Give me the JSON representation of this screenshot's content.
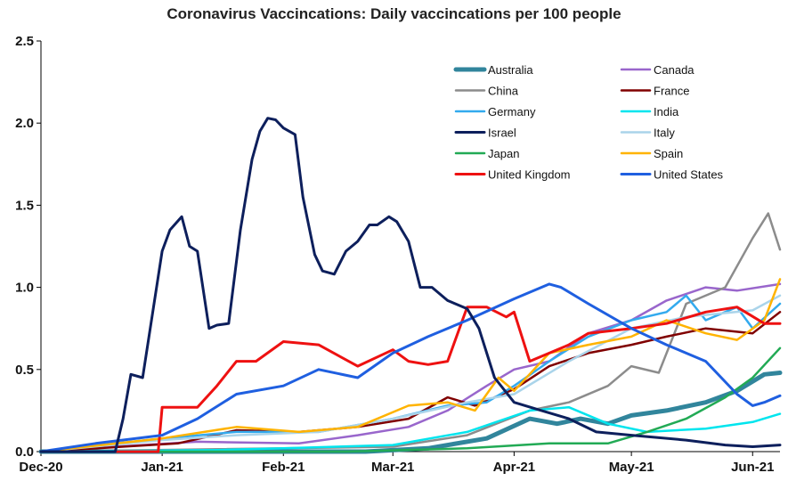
{
  "chart_data": {
    "type": "line",
    "title": "Coronavirus Vaccincations: Daily vaccincations per 100 people",
    "xlabel": "",
    "ylabel": "",
    "ylim": [
      0,
      2.5
    ],
    "y_ticks": [
      "0.0",
      "0.5",
      "1.0",
      "1.5",
      "2.0",
      "2.5"
    ],
    "x_range": [
      "2020-12-01",
      "2021-06-08"
    ],
    "x_ticks": [
      {
        "label": "Dec-20",
        "date": "2020-12-01"
      },
      {
        "label": "Jan-21",
        "date": "2021-01-01"
      },
      {
        "label": "Feb-21",
        "date": "2021-02-01"
      },
      {
        "label": "Mar-21",
        "date": "2021-03-01"
      },
      {
        "label": "Apr-21",
        "date": "2021-04-01"
      },
      {
        "label": "May-21",
        "date": "2021-05-01"
      },
      {
        "label": "Jun-21",
        "date": "2021-06-01"
      }
    ],
    "grid": false,
    "legend_position": "top-right",
    "series": [
      {
        "name": "Australia",
        "color": "#31859c",
        "width": 5,
        "x": [
          "2020-12-01",
          "2021-02-22",
          "2021-03-10",
          "2021-03-25",
          "2021-04-05",
          "2021-04-12",
          "2021-04-18",
          "2021-04-25",
          "2021-05-01",
          "2021-05-10",
          "2021-05-20",
          "2021-05-28",
          "2021-06-04",
          "2021-06-08"
        ],
        "y": [
          0,
          0,
          0.02,
          0.08,
          0.2,
          0.17,
          0.2,
          0.17,
          0.22,
          0.25,
          0.3,
          0.37,
          0.47,
          0.48
        ]
      },
      {
        "name": "Canada",
        "color": "#9966cc",
        "width": 2.5,
        "x": [
          "2020-12-01",
          "2020-12-20",
          "2021-01-10",
          "2021-02-05",
          "2021-02-20",
          "2021-03-05",
          "2021-03-15",
          "2021-03-25",
          "2021-04-01",
          "2021-04-10",
          "2021-04-20",
          "2021-05-01",
          "2021-05-10",
          "2021-05-20",
          "2021-05-28",
          "2021-06-08"
        ],
        "y": [
          0,
          0.03,
          0.06,
          0.05,
          0.1,
          0.15,
          0.25,
          0.4,
          0.5,
          0.55,
          0.72,
          0.8,
          0.92,
          1.0,
          0.98,
          1.02
        ]
      },
      {
        "name": "China",
        "color": "#8c8c8c",
        "width": 2.5,
        "x": [
          "2020-12-01",
          "2021-03-01",
          "2021-03-20",
          "2021-04-05",
          "2021-04-15",
          "2021-04-25",
          "2021-05-01",
          "2021-05-08",
          "2021-05-15",
          "2021-05-25",
          "2021-06-01",
          "2021-06-05",
          "2021-06-08"
        ],
        "y": [
          0,
          0.03,
          0.1,
          0.25,
          0.3,
          0.4,
          0.52,
          0.48,
          0.9,
          1.0,
          1.3,
          1.45,
          1.23
        ]
      },
      {
        "name": "France",
        "color": "#800000",
        "width": 2.5,
        "x": [
          "2020-12-01",
          "2021-01-05",
          "2021-01-20",
          "2021-02-05",
          "2021-02-20",
          "2021-03-05",
          "2021-03-15",
          "2021-03-22",
          "2021-04-01",
          "2021-04-10",
          "2021-04-20",
          "2021-05-01",
          "2021-05-10",
          "2021-05-20",
          "2021-06-01",
          "2021-06-08"
        ],
        "y": [
          0,
          0.05,
          0.13,
          0.12,
          0.15,
          0.2,
          0.33,
          0.28,
          0.38,
          0.52,
          0.6,
          0.65,
          0.7,
          0.75,
          0.72,
          0.85
        ]
      },
      {
        "name": "Germany",
        "color": "#33aaee",
        "width": 2.5,
        "x": [
          "2020-12-01",
          "2021-01-01",
          "2021-01-20",
          "2021-02-10",
          "2021-03-01",
          "2021-03-15",
          "2021-03-25",
          "2021-04-01",
          "2021-04-10",
          "2021-04-20",
          "2021-05-01",
          "2021-05-10",
          "2021-05-15",
          "2021-05-20",
          "2021-05-28",
          "2021-06-01",
          "2021-06-08"
        ],
        "y": [
          0,
          0.08,
          0.12,
          0.12,
          0.2,
          0.28,
          0.3,
          0.4,
          0.55,
          0.7,
          0.8,
          0.85,
          0.95,
          0.8,
          0.88,
          0.75,
          0.9
        ]
      },
      {
        "name": "India",
        "color": "#00e5ee",
        "width": 2.5,
        "x": [
          "2020-12-01",
          "2021-01-15",
          "2021-02-01",
          "2021-03-01",
          "2021-03-20",
          "2021-04-05",
          "2021-04-15",
          "2021-04-25",
          "2021-05-05",
          "2021-05-20",
          "2021-06-01",
          "2021-06-08"
        ],
        "y": [
          0,
          0.01,
          0.02,
          0.04,
          0.12,
          0.25,
          0.27,
          0.17,
          0.12,
          0.14,
          0.18,
          0.23
        ]
      },
      {
        "name": "Israel",
        "color": "#0d1f5c",
        "width": 3,
        "x": [
          "2020-12-01",
          "2020-12-20",
          "2020-12-22",
          "2020-12-24",
          "2020-12-27",
          "2021-01-01",
          "2021-01-03",
          "2021-01-06",
          "2021-01-08",
          "2021-01-10",
          "2021-01-13",
          "2021-01-15",
          "2021-01-18",
          "2021-01-21",
          "2021-01-24",
          "2021-01-26",
          "2021-01-28",
          "2021-01-30",
          "2021-02-01",
          "2021-02-04",
          "2021-02-06",
          "2021-02-09",
          "2021-02-11",
          "2021-02-14",
          "2021-02-17",
          "2021-02-20",
          "2021-02-23",
          "2021-02-25",
          "2021-02-28",
          "2021-03-02",
          "2021-03-05",
          "2021-03-08",
          "2021-03-11",
          "2021-03-15",
          "2021-03-20",
          "2021-03-23",
          "2021-03-27",
          "2021-04-01",
          "2021-04-08",
          "2021-04-15",
          "2021-04-22",
          "2021-05-01",
          "2021-05-15",
          "2021-05-25",
          "2021-06-01",
          "2021-06-08"
        ],
        "y": [
          0,
          0,
          0.2,
          0.47,
          0.45,
          1.22,
          1.35,
          1.43,
          1.25,
          1.22,
          0.75,
          0.77,
          0.78,
          1.35,
          1.78,
          1.95,
          2.03,
          2.02,
          1.97,
          1.93,
          1.55,
          1.2,
          1.1,
          1.08,
          1.22,
          1.28,
          1.38,
          1.38,
          1.43,
          1.4,
          1.28,
          1.0,
          1.0,
          0.92,
          0.87,
          0.75,
          0.45,
          0.3,
          0.25,
          0.2,
          0.12,
          0.1,
          0.07,
          0.04,
          0.03,
          0.04
        ]
      },
      {
        "name": "Italy",
        "color": "#aad4ea",
        "width": 2.5,
        "x": [
          "2020-12-01",
          "2021-01-01",
          "2021-01-20",
          "2021-02-10",
          "2021-03-01",
          "2021-03-20",
          "2021-04-01",
          "2021-04-15",
          "2021-05-01",
          "2021-05-15",
          "2021-06-01",
          "2021-06-08"
        ],
        "y": [
          0,
          0.07,
          0.1,
          0.12,
          0.2,
          0.3,
          0.35,
          0.55,
          0.75,
          0.82,
          0.86,
          0.95
        ]
      },
      {
        "name": "Japan",
        "color": "#22aa55",
        "width": 2.5,
        "x": [
          "2020-12-01",
          "2021-02-17",
          "2021-03-20",
          "2021-04-10",
          "2021-04-25",
          "2021-05-05",
          "2021-05-15",
          "2021-05-25",
          "2021-06-01",
          "2021-06-08"
        ],
        "y": [
          0,
          0,
          0.02,
          0.05,
          0.05,
          0.12,
          0.2,
          0.33,
          0.45,
          0.63
        ]
      },
      {
        "name": "Spain",
        "color": "#ffb300",
        "width": 2.5,
        "x": [
          "2020-12-01",
          "2021-01-01",
          "2021-01-20",
          "2021-02-05",
          "2021-02-20",
          "2021-03-05",
          "2021-03-15",
          "2021-03-22",
          "2021-03-28",
          "2021-04-01",
          "2021-04-10",
          "2021-04-20",
          "2021-05-01",
          "2021-05-10",
          "2021-05-20",
          "2021-05-28",
          "2021-06-04",
          "2021-06-08"
        ],
        "y": [
          0,
          0.08,
          0.15,
          0.12,
          0.15,
          0.28,
          0.3,
          0.25,
          0.45,
          0.37,
          0.6,
          0.65,
          0.7,
          0.8,
          0.72,
          0.68,
          0.8,
          1.05
        ]
      },
      {
        "name": "United Kingdom",
        "color": "#ee1111",
        "width": 3,
        "x": [
          "2020-12-01",
          "2020-12-31",
          "2021-01-01",
          "2021-01-10",
          "2021-01-15",
          "2021-01-20",
          "2021-01-25",
          "2021-02-01",
          "2021-02-10",
          "2021-02-20",
          "2021-03-01",
          "2021-03-05",
          "2021-03-10",
          "2021-03-15",
          "2021-03-20",
          "2021-03-25",
          "2021-03-30",
          "2021-04-01",
          "2021-04-05",
          "2021-04-10",
          "2021-04-15",
          "2021-04-20",
          "2021-05-01",
          "2021-05-10",
          "2021-05-20",
          "2021-05-28",
          "2021-06-04",
          "2021-06-08"
        ],
        "y": [
          0,
          0,
          0.27,
          0.27,
          0.4,
          0.55,
          0.55,
          0.67,
          0.65,
          0.52,
          0.62,
          0.55,
          0.53,
          0.55,
          0.88,
          0.88,
          0.82,
          0.85,
          0.55,
          0.6,
          0.65,
          0.72,
          0.75,
          0.78,
          0.85,
          0.88,
          0.78,
          0.78
        ]
      },
      {
        "name": "United States",
        "color": "#1f5fe0",
        "width": 3,
        "x": [
          "2020-12-01",
          "2020-12-15",
          "2021-01-01",
          "2021-01-10",
          "2021-01-20",
          "2021-02-01",
          "2021-02-10",
          "2021-02-20",
          "2021-03-01",
          "2021-03-10",
          "2021-03-20",
          "2021-04-01",
          "2021-04-10",
          "2021-04-13",
          "2021-04-20",
          "2021-05-01",
          "2021-05-10",
          "2021-05-20",
          "2021-05-28",
          "2021-06-01",
          "2021-06-04",
          "2021-06-08"
        ],
        "y": [
          0,
          0.05,
          0.1,
          0.2,
          0.35,
          0.4,
          0.5,
          0.45,
          0.6,
          0.7,
          0.8,
          0.93,
          1.02,
          1.0,
          0.9,
          0.75,
          0.65,
          0.55,
          0.35,
          0.28,
          0.3,
          0.34
        ]
      }
    ]
  }
}
